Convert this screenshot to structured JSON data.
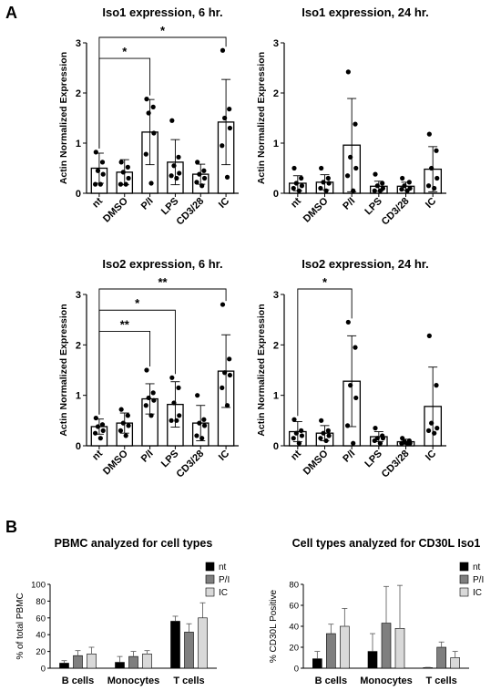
{
  "panels": {
    "A": "A",
    "B": "B"
  },
  "chart_data": [
    {
      "type": "bar",
      "title": "Iso1 expression, 6 hr.",
      "ylabel": "Actin Normalized Expression",
      "ylim": [
        0,
        3
      ],
      "yticks": [
        "0",
        "1",
        "2",
        "3"
      ],
      "categories": [
        "nt",
        "DMSO",
        "P/I",
        "LPS",
        "CD3/28",
        "IC"
      ],
      "values": [
        0.5,
        0.42,
        1.22,
        0.62,
        0.38,
        1.42
      ],
      "errors": [
        0.3,
        0.25,
        0.65,
        0.45,
        0.2,
        0.85
      ],
      "points": [
        [
          0.82,
          0.62,
          0.45,
          0.38,
          0.18,
          0.18
        ],
        [
          0.62,
          0.52,
          0.42,
          0.3,
          0.18,
          0.18
        ],
        [
          1.88,
          1.72,
          1.6,
          1.2,
          0.78,
          0.2
        ],
        [
          1.45,
          0.72,
          0.55,
          0.4,
          0.35,
          0.3
        ],
        [
          0.62,
          0.45,
          0.38,
          0.3,
          0.22,
          0.15
        ],
        [
          2.85,
          1.68,
          1.5,
          1.3,
          0.95,
          0.32
        ]
      ],
      "significance": [
        {
          "from": 0,
          "to": 2,
          "label": "*"
        },
        {
          "from": 0,
          "to": 5,
          "label": "*"
        }
      ]
    },
    {
      "type": "bar",
      "title": "Iso1 expression, 24 hr.",
      "ylabel": "Actin Normalized Expression",
      "ylim": [
        0,
        3
      ],
      "yticks": [
        "0",
        "1",
        "2",
        "3"
      ],
      "categories": [
        "nt",
        "DMSO",
        "P/I",
        "LPS",
        "CD3/28",
        "IC"
      ],
      "values": [
        0.2,
        0.22,
        0.96,
        0.14,
        0.14,
        0.48
      ],
      "errors": [
        0.15,
        0.15,
        0.93,
        0.1,
        0.08,
        0.45
      ],
      "points": [
        [
          0.5,
          0.3,
          0.2,
          0.15,
          0.1,
          0.05
        ],
        [
          0.5,
          0.3,
          0.22,
          0.2,
          0.1,
          0.05
        ],
        [
          2.42,
          1.38,
          0.72,
          0.5,
          0.35,
          0.05
        ],
        [
          0.38,
          0.2,
          0.15,
          0.1,
          0.05,
          0.05
        ],
        [
          0.3,
          0.22,
          0.15,
          0.1,
          0.08,
          0.05
        ],
        [
          1.18,
          0.85,
          0.5,
          0.3,
          0.15,
          0.1
        ]
      ]
    },
    {
      "type": "bar",
      "title": "Iso2 expression, 6 hr.",
      "ylabel": "Actin Normalized Expression",
      "ylim": [
        0,
        3
      ],
      "yticks": [
        "0",
        "1",
        "2",
        "3"
      ],
      "categories": [
        "nt",
        "DMSO",
        "P/I",
        "LPS",
        "CD3/28",
        "IC"
      ],
      "values": [
        0.38,
        0.45,
        0.93,
        0.82,
        0.45,
        1.48
      ],
      "errors": [
        0.15,
        0.2,
        0.3,
        0.45,
        0.35,
        0.72
      ],
      "points": [
        [
          0.55,
          0.42,
          0.38,
          0.3,
          0.25,
          0.15
        ],
        [
          0.72,
          0.6,
          0.45,
          0.4,
          0.3,
          0.2
        ],
        [
          1.5,
          1.05,
          0.95,
          0.9,
          0.8,
          0.6
        ],
        [
          1.35,
          1.15,
          0.85,
          0.6,
          0.5,
          0.5
        ],
        [
          1.0,
          0.52,
          0.45,
          0.4,
          0.2,
          0.15
        ],
        [
          2.8,
          1.72,
          1.45,
          1.4,
          1.15,
          0.8
        ]
      ],
      "significance": [
        {
          "from": 0,
          "to": 2,
          "label": "**"
        },
        {
          "from": 0,
          "to": 3,
          "label": "*"
        },
        {
          "from": 0,
          "to": 5,
          "label": "**"
        }
      ]
    },
    {
      "type": "bar",
      "title": "Iso2 expression, 24 hr.",
      "ylabel": "Actin Normalized Expression",
      "ylim": [
        0,
        3
      ],
      "yticks": [
        "0",
        "1",
        "2",
        "3"
      ],
      "categories": [
        "nt",
        "DMSO",
        "P/I",
        "LPS",
        "CD3/28",
        "IC"
      ],
      "values": [
        0.28,
        0.25,
        1.28,
        0.18,
        0.08,
        0.78
      ],
      "errors": [
        0.2,
        0.15,
        0.9,
        0.1,
        0.05,
        0.78
      ],
      "points": [
        [
          0.52,
          0.3,
          0.25,
          0.2,
          0.15,
          0.05
        ],
        [
          0.5,
          0.3,
          0.25,
          0.2,
          0.15,
          0.1
        ],
        [
          2.45,
          1.95,
          1.2,
          0.95,
          0.4,
          0.05
        ],
        [
          0.35,
          0.2,
          0.15,
          0.15,
          0.1,
          0.05
        ],
        [
          0.15,
          0.1,
          0.08,
          0.05,
          0.05,
          0.05
        ],
        [
          2.18,
          1.2,
          0.45,
          0.35,
          0.3,
          0.25
        ]
      ],
      "significance": [
        {
          "from": 0,
          "to": 2,
          "label": "*"
        }
      ]
    },
    {
      "type": "bar",
      "title": "PBMC analyzed for cell types",
      "ylabel": "% of total PBMC",
      "ylim": [
        0,
        100
      ],
      "yticks": [
        "0",
        "20",
        "40",
        "60",
        "80",
        "100"
      ],
      "categories": [
        "B cells",
        "Monocytes",
        "T cells"
      ],
      "legend_position": "top-right",
      "series": [
        {
          "name": "nt",
          "color": "#000000",
          "values": [
            6,
            7,
            56
          ],
          "errors": [
            3,
            7,
            6
          ]
        },
        {
          "name": "P/I",
          "color": "#7f7f7f",
          "values": [
            15,
            14,
            43
          ],
          "errors": [
            6,
            6,
            10
          ]
        },
        {
          "name": "IC",
          "color": "#d9d9d9",
          "values": [
            17,
            17,
            60
          ],
          "errors": [
            8,
            4,
            18
          ]
        }
      ]
    },
    {
      "type": "bar",
      "title": "Cell types analyzed for CD30L Iso1",
      "ylabel": "% CD30L Positive",
      "ylim": [
        0,
        80
      ],
      "yticks": [
        "0",
        "20",
        "40",
        "60",
        "80"
      ],
      "categories": [
        "B cells",
        "Monocytes",
        "T cells"
      ],
      "legend_position": "top-right",
      "series": [
        {
          "name": "nt",
          "color": "#000000",
          "values": [
            9,
            16,
            0.5
          ],
          "errors": [
            7,
            17,
            0.3
          ]
        },
        {
          "name": "P/I",
          "color": "#7f7f7f",
          "values": [
            33,
            43,
            20
          ],
          "errors": [
            9,
            35,
            5
          ]
        },
        {
          "name": "IC",
          "color": "#d9d9d9",
          "values": [
            40,
            38,
            10
          ],
          "errors": [
            17,
            41,
            6
          ]
        }
      ]
    }
  ]
}
